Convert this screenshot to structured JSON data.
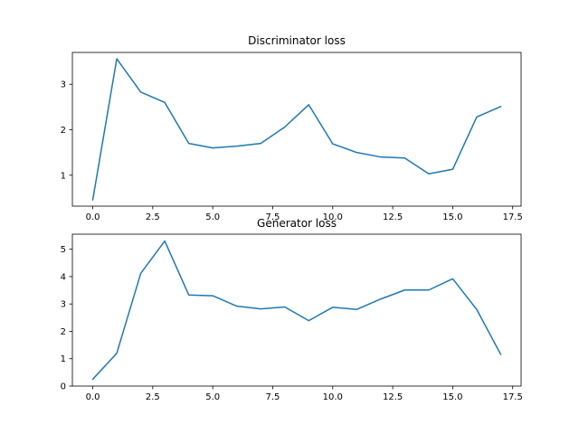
{
  "chart_data": [
    {
      "type": "line",
      "title": "Discriminator loss",
      "xlabel": "",
      "ylabel": "",
      "xlim": [
        -0.85,
        17.85
      ],
      "ylim": [
        0.32,
        3.7
      ],
      "xticks": [
        0.0,
        2.5,
        5.0,
        7.5,
        10.0,
        12.5,
        15.0,
        17.5
      ],
      "xtick_labels": [
        "0.0",
        "2.5",
        "5.0",
        "7.5",
        "10.0",
        "12.5",
        "15.0",
        "17.5"
      ],
      "yticks": [
        1,
        2,
        3
      ],
      "ytick_labels": [
        "1",
        "2",
        "3"
      ],
      "grid": false,
      "color": "#1f77b4",
      "series": [
        {
          "x": [
            0,
            1,
            2,
            3,
            4,
            5,
            6,
            7,
            8,
            9,
            10,
            11,
            12,
            13,
            14,
            15,
            16,
            17
          ],
          "y": [
            0.46,
            3.56,
            2.83,
            2.6,
            1.7,
            1.6,
            1.64,
            1.7,
            2.06,
            2.55,
            1.69,
            1.5,
            1.4,
            1.38,
            1.03,
            1.13,
            2.28,
            2.51
          ]
        }
      ]
    },
    {
      "type": "line",
      "title": "Generator loss",
      "xlabel": "",
      "ylabel": "",
      "xlim": [
        -0.85,
        17.85
      ],
      "ylim": [
        0.0,
        5.55
      ],
      "xticks": [
        0.0,
        2.5,
        5.0,
        7.5,
        10.0,
        12.5,
        15.0,
        17.5
      ],
      "xtick_labels": [
        "0.0",
        "2.5",
        "5.0",
        "7.5",
        "10.0",
        "12.5",
        "15.0",
        "17.5"
      ],
      "yticks": [
        0,
        1,
        2,
        3,
        4,
        5
      ],
      "ytick_labels": [
        "0",
        "1",
        "2",
        "3",
        "4",
        "5"
      ],
      "grid": false,
      "color": "#1f77b4",
      "series": [
        {
          "x": [
            0,
            1,
            2,
            3,
            4,
            5,
            6,
            7,
            8,
            9,
            10,
            11,
            12,
            13,
            14,
            15,
            16,
            17
          ],
          "y": [
            0.25,
            1.2,
            4.12,
            5.3,
            3.33,
            3.3,
            2.92,
            2.82,
            2.89,
            2.39,
            2.88,
            2.8,
            3.18,
            3.51,
            3.51,
            3.92,
            2.8,
            1.16
          ]
        }
      ]
    }
  ]
}
